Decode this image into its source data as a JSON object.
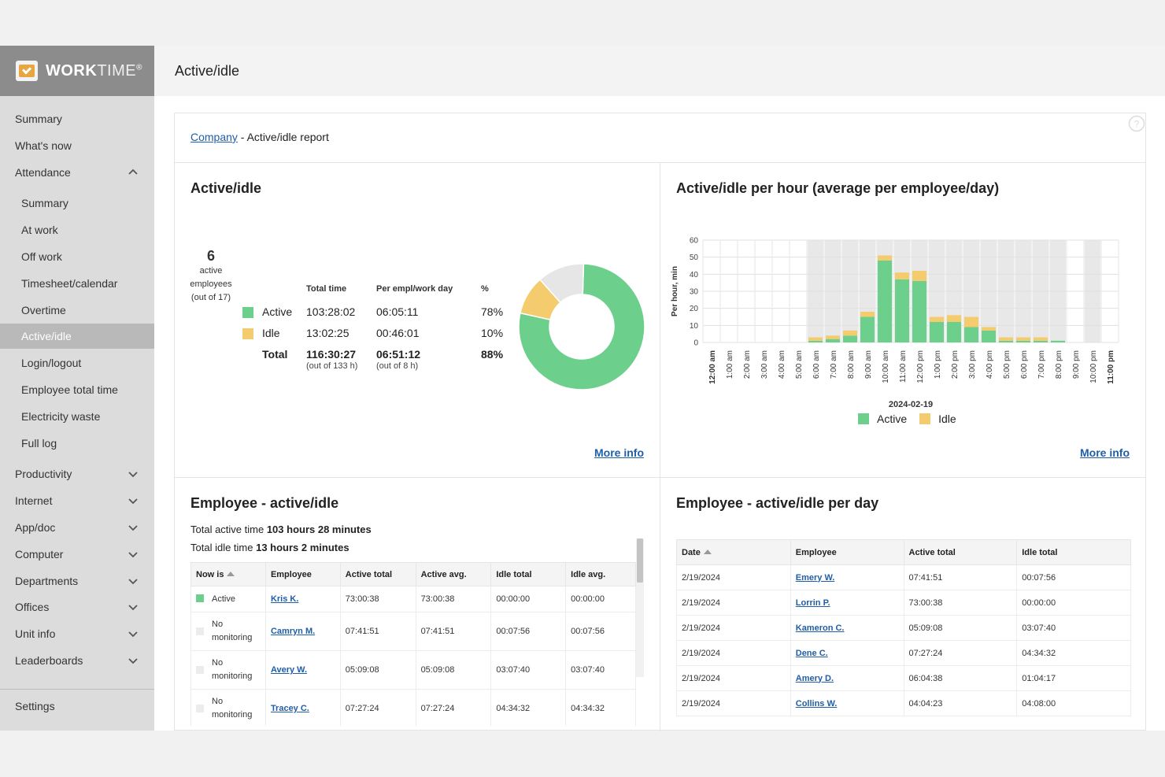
{
  "app": {
    "logo_bold": "WORK",
    "logo_light": "TIME",
    "logo_mark": "®"
  },
  "page_title": "Active/idle",
  "sidebar": {
    "items": [
      {
        "label": "Summary"
      },
      {
        "label": "What's now"
      },
      {
        "label": "Attendance"
      },
      {
        "label": "Summary"
      },
      {
        "label": "At work"
      },
      {
        "label": "Off work"
      },
      {
        "label": "Timesheet/calendar"
      },
      {
        "label": "Overtime"
      },
      {
        "label": "Active/idle"
      },
      {
        "label": "Login/logout"
      },
      {
        "label": "Employee total time"
      },
      {
        "label": "Electricity waste"
      },
      {
        "label": "Full log"
      },
      {
        "label": "Productivity"
      },
      {
        "label": "Internet"
      },
      {
        "label": "App/doc"
      },
      {
        "label": "Computer"
      },
      {
        "label": "Departments"
      },
      {
        "label": "Offices"
      },
      {
        "label": "Unit info"
      },
      {
        "label": "Leaderboards"
      },
      {
        "label": "Settings"
      }
    ]
  },
  "breadcrumb": {
    "link": "Company",
    "rest": " - Active/idle report"
  },
  "panel_active_idle": {
    "title": "Active/idle",
    "count": "6",
    "count_label_1": "active",
    "count_label_2": "employees",
    "count_label_3": "(out of 17)",
    "headers": {
      "total": "Total time",
      "per_day": "Per empl/work day",
      "pct": "%"
    },
    "rows": [
      {
        "label": "Active",
        "total": "103:28:02",
        "per_day": "06:05:11",
        "pct": "78%"
      },
      {
        "label": "Idle",
        "total": "13:02:25",
        "per_day": "00:46:01",
        "pct": "10%"
      }
    ],
    "total_row": {
      "label": "Total",
      "total": "116:30:27",
      "total_note": "(out of 133 h)",
      "per_day": "06:51:12",
      "per_day_note": "(out of 8 h)",
      "pct": "88%"
    },
    "donut": {
      "active": 78,
      "idle": 10,
      "other": 12
    },
    "more_info": "More info"
  },
  "panel_per_hour": {
    "title": "Active/idle per hour (average per employee/day)",
    "more_info": "More info"
  },
  "chart_data": {
    "type": "bar",
    "stacked": true,
    "title": "Active/idle per hour (average per employee/day)",
    "ylabel": "Per hour, min",
    "xlabel": "2024-02-19",
    "ylim": [
      0,
      60
    ],
    "yticks": [
      0,
      10,
      20,
      30,
      40,
      50,
      60
    ],
    "categories": [
      "12:00 am",
      "1:00 am",
      "2:00 am",
      "3:00 am",
      "4:00 am",
      "5:00 am",
      "6:00 am",
      "7:00 am",
      "8:00 am",
      "9:00 am",
      "10:00 am",
      "11:00 am",
      "12:00 pm",
      "1:00 pm",
      "2:00 pm",
      "3:00 pm",
      "4:00 pm",
      "5:00 pm",
      "6:00 pm",
      "7:00 pm",
      "8:00 pm",
      "9:00 pm",
      "10:00 pm",
      "11:00 pm"
    ],
    "bold_categories": [
      "12:00 am",
      "11:00 pm"
    ],
    "working_hours": [
      0,
      0,
      0,
      0,
      0,
      0,
      1,
      1,
      1,
      1,
      1,
      1,
      1,
      1,
      1,
      1,
      1,
      1,
      1,
      1,
      1,
      0,
      1,
      0
    ],
    "series": [
      {
        "name": "Active",
        "color": "#6dcf8c",
        "values": [
          0,
          0,
          0,
          0,
          0,
          0,
          1,
          2,
          4,
          15,
          48,
          37,
          36,
          12,
          12,
          9,
          7,
          1,
          1,
          1,
          1,
          0,
          0,
          0
        ]
      },
      {
        "name": "Idle",
        "color": "#f5cc6d",
        "values": [
          0,
          0,
          0,
          0,
          0,
          0,
          2,
          2,
          3,
          3,
          3,
          4,
          6,
          3,
          4,
          6,
          2,
          2,
          2,
          2,
          0,
          0,
          0,
          0
        ]
      }
    ],
    "legend": "bottom"
  },
  "panel_employee": {
    "title": "Employee - active/idle",
    "line1_prefix": "Total active time ",
    "line1_bold": "103 hours 28 minutes",
    "line2_prefix": "Total idle time ",
    "line2_bold": "13 hours 2 minutes",
    "columns": [
      "Now is",
      "Employee",
      "Active total",
      "Active avg.",
      "Idle total",
      "Idle avg."
    ],
    "rows": [
      {
        "status": "Active",
        "status2": "",
        "employee": "Kris K.",
        "active_total": "73:00:38",
        "active_avg": "73:00:38",
        "idle_total": "00:00:00",
        "idle_avg": "00:00:00"
      },
      {
        "status": "No",
        "status2": "monitoring",
        "employee": "Camryn M.",
        "active_total": "07:41:51",
        "active_avg": "07:41:51",
        "idle_total": "00:07:56",
        "idle_avg": "00:07:56"
      },
      {
        "status": "No",
        "status2": "monitoring",
        "employee": "Avery W.",
        "active_total": "05:09:08",
        "active_avg": "05:09:08",
        "idle_total": "03:07:40",
        "idle_avg": "03:07:40"
      },
      {
        "status": "No",
        "status2": "monitoring",
        "employee": "Tracey C.",
        "active_total": "07:27:24",
        "active_avg": "07:27:24",
        "idle_total": "04:34:32",
        "idle_avg": "04:34:32"
      }
    ]
  },
  "panel_per_day": {
    "title": "Employee - active/idle per day",
    "columns": [
      "Date",
      "Employee",
      "Active total",
      "Idle total"
    ],
    "rows": [
      {
        "date": "2/19/2024",
        "employee": "Emery W.",
        "active": "07:41:51",
        "idle": "00:07:56"
      },
      {
        "date": "2/19/2024",
        "employee": "Lorrin P.",
        "active": "73:00:38",
        "idle": "00:00:00"
      },
      {
        "date": "2/19/2024",
        "employee": "Kameron C.",
        "active": "05:09:08",
        "idle": "03:07:40"
      },
      {
        "date": "2/19/2024",
        "employee": "Dene C.",
        "active": "07:27:24",
        "idle": "04:34:32"
      },
      {
        "date": "2/19/2024",
        "employee": "Amery D.",
        "active": "06:04:38",
        "idle": "01:04:17"
      },
      {
        "date": "2/19/2024",
        "employee": "Collins W.",
        "active": "04:04:23",
        "idle": "04:08:00"
      }
    ]
  },
  "colors": {
    "active": "#6dcf8c",
    "idle": "#f5cc6d",
    "other": "#e6e6e6",
    "link": "#1f5ea8",
    "sidebar_active": "#b9b9b9"
  }
}
